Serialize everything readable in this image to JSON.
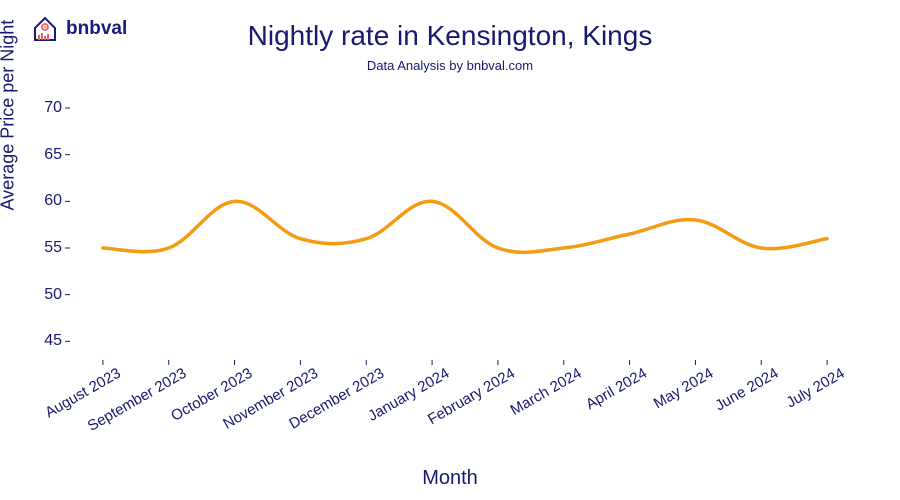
{
  "logo": {
    "text": "bnbval",
    "text_color": "#1a1a7a",
    "house_color": "#1a1a7a",
    "accent_color": "#ff5a5f",
    "bars_color": "#ff5a5f"
  },
  "chart": {
    "type": "line",
    "title": "Nightly rate in Kensington, Kings",
    "subtitle": "Data Analysis by bnbval.com",
    "title_fontsize": 28,
    "subtitle_fontsize": 13,
    "title_color": "#191970",
    "y_axis": {
      "label": "Average Price per Night",
      "label_fontsize": 18,
      "ticks": [
        45,
        50,
        55,
        60,
        65,
        70
      ],
      "ylim": [
        43,
        73
      ],
      "tick_fontsize": 16,
      "tick_color": "#191970"
    },
    "x_axis": {
      "label": "Month",
      "label_fontsize": 20,
      "categories": [
        "August 2023",
        "September 2023",
        "October 2023",
        "November 2023",
        "December 2023",
        "January 2024",
        "February 2024",
        "March 2024",
        "April 2024",
        "May 2024",
        "June 2024",
        "July 2024"
      ],
      "tick_rotation": -30,
      "tick_fontsize": 15,
      "tick_color": "#191970"
    },
    "series": {
      "values": [
        55,
        55,
        60,
        56,
        56,
        60,
        55,
        55,
        56.5,
        58,
        55,
        56
      ],
      "color": "#f39c12",
      "line_width": 3.5,
      "smooth": true
    },
    "background_color": "#ffffff",
    "grid": false
  }
}
